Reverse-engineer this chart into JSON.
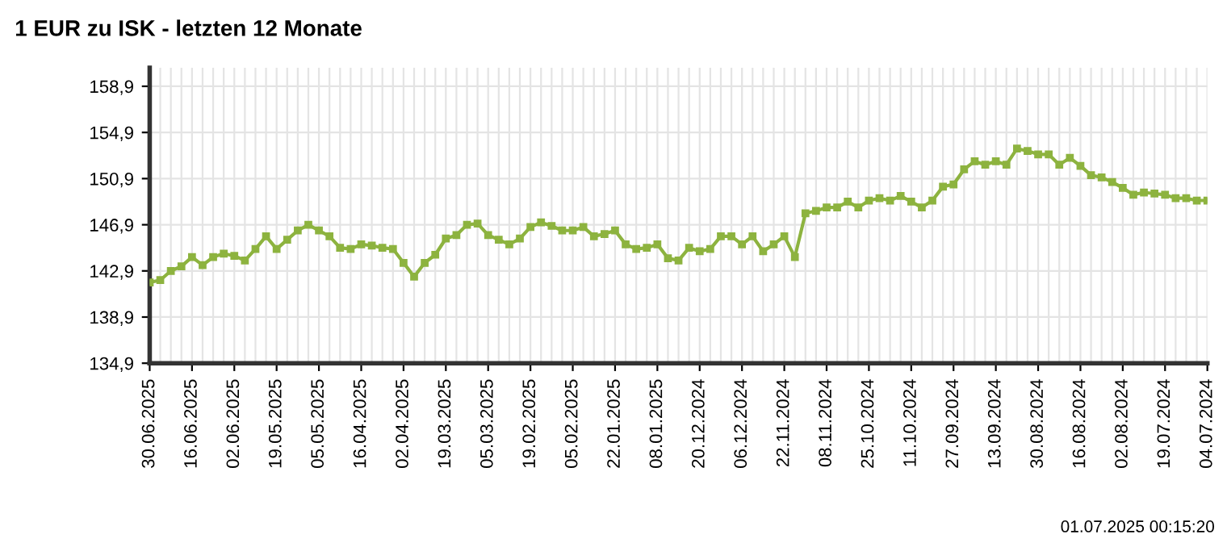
{
  "chart_data": {
    "type": "line",
    "title": "1 EUR zu ISK - letzten 12 Monate",
    "categories": [
      "30.06.2025",
      null,
      null,
      null,
      "16.06.2025",
      null,
      null,
      null,
      "02.06.2025",
      null,
      null,
      null,
      "19.05.2025",
      null,
      null,
      null,
      "05.05.2025",
      null,
      null,
      null,
      "16.04.2025",
      null,
      null,
      null,
      "02.04.2025",
      null,
      null,
      null,
      "19.03.2025",
      null,
      null,
      null,
      "05.03.2025",
      null,
      null,
      null,
      "19.02.2025",
      null,
      null,
      null,
      "05.02.2025",
      null,
      null,
      null,
      "22.01.2025",
      null,
      null,
      null,
      "08.01.2025",
      null,
      null,
      null,
      "20.12.2024",
      null,
      null,
      null,
      "06.12.2024",
      null,
      null,
      null,
      "22.11.2024",
      null,
      null,
      null,
      "08.11.2024",
      null,
      null,
      null,
      "25.10.2024",
      null,
      null,
      null,
      "11.10.2024",
      null,
      null,
      null,
      "27.09.2024",
      null,
      null,
      null,
      "13.09.2024",
      null,
      null,
      null,
      "30.08.2024",
      null,
      null,
      null,
      "16.08.2024",
      null,
      null,
      null,
      "02.08.2024",
      null,
      null,
      null,
      "19.07.2024",
      null,
      null,
      null,
      "04.07.2024"
    ],
    "series": [
      {
        "color": "#8db33f",
        "values": [
          141.9,
          142.1,
          142.9,
          143.3,
          144.1,
          143.4,
          144.1,
          144.4,
          144.2,
          143.8,
          144.8,
          145.9,
          144.8,
          145.6,
          146.4,
          146.9,
          146.4,
          145.9,
          144.9,
          144.8,
          145.2,
          145.1,
          144.9,
          144.8,
          143.6,
          142.4,
          143.6,
          144.3,
          145.7,
          146.0,
          146.9,
          147.0,
          146.0,
          145.6,
          145.2,
          145.7,
          146.7,
          147.1,
          146.8,
          146.4,
          146.4,
          146.7,
          145.9,
          146.1,
          146.4,
          145.2,
          144.8,
          144.9,
          145.2,
          144.0,
          143.8,
          144.9,
          144.6,
          144.8,
          145.9,
          145.9,
          145.2,
          145.9,
          144.6,
          145.2,
          145.9,
          144.1,
          147.9,
          148.1,
          148.4,
          148.4,
          148.9,
          148.4,
          149.0,
          149.2,
          149.0,
          149.4,
          148.9,
          148.4,
          149.0,
          150.2,
          150.4,
          151.7,
          152.4,
          152.1,
          152.4,
          152.1,
          153.5,
          153.3,
          153.0,
          153.0,
          152.1,
          152.7,
          152.0,
          151.2,
          151.0,
          150.6,
          150.1,
          149.5,
          149.7,
          149.6,
          149.5,
          149.2,
          149.2,
          149.0,
          149.0
        ]
      }
    ],
    "ylim": [
      134.9,
      160.5
    ],
    "yticks": [
      {
        "value": 134.9,
        "label": "134,9"
      },
      {
        "value": 138.9,
        "label": "138,9"
      },
      {
        "value": 142.9,
        "label": "142,9"
      },
      {
        "value": 146.9,
        "label": "146,9"
      },
      {
        "value": 150.9,
        "label": "150,9"
      },
      {
        "value": 154.9,
        "label": "154,9"
      },
      {
        "value": 158.9,
        "label": "158,9"
      }
    ],
    "grid": true,
    "marker": "square",
    "line_style": "solid",
    "legend": false,
    "annotations": [
      "01.07.2025 00:15:20"
    ]
  }
}
